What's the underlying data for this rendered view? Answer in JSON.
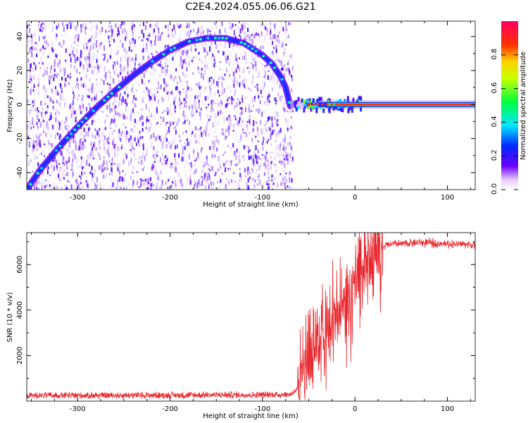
{
  "title": "C2E4.2024.055.06.06.G21",
  "colors": {
    "snr_line": "#e8262c",
    "frame": "#000000",
    "background": "#ffffff"
  },
  "chart_data": [
    {
      "type": "heatmap",
      "xlabel": "Height of straight line (km)",
      "ylabel": "Frequency (Hz)",
      "xlim": [
        -355,
        130
      ],
      "ylim": [
        -50,
        49
      ],
      "x_ticks": [
        -300,
        -200,
        -100,
        0,
        100
      ],
      "y_ticks": [
        -40,
        -20,
        0,
        20,
        40
      ],
      "colorbar": {
        "label": "Normalized spectral amplitude",
        "range": [
          0.0,
          1.0
        ],
        "ticks": [
          0.0,
          0.2,
          0.4,
          0.6,
          0.8
        ],
        "colormap": "rainbow"
      },
      "ridge": {
        "x": [
          -355,
          -340,
          -320,
          -300,
          -280,
          -260,
          -240,
          -220,
          -200,
          -180,
          -160,
          -140,
          -120,
          -100,
          -90,
          -80,
          -75,
          -70
        ],
        "y": [
          -50,
          -38,
          -25,
          -13,
          -2,
          8,
          17,
          25,
          32,
          37,
          39,
          39,
          36,
          29,
          24,
          16,
          10,
          -1
        ]
      },
      "noise_region_x": [
        -355,
        -68
      ],
      "carrier": {
        "x_start": -70,
        "x_end": 130,
        "frequency": 0
      }
    },
    {
      "type": "line",
      "xlabel": "Height of straight line (km)",
      "ylabel": "SNR (10 * v/v)",
      "xlim": [
        -355,
        130
      ],
      "ylim": [
        0,
        7400
      ],
      "x_ticks": [
        -300,
        -200,
        -100,
        0,
        100
      ],
      "y_ticks": [
        2000,
        4000,
        6000
      ],
      "series": [
        {
          "x": [
            -355,
            -300,
            -200,
            -100,
            -70,
            -60,
            -55,
            -50,
            -45,
            -40,
            -35,
            -30,
            -25,
            -20,
            -15,
            -10,
            -5,
            0,
            5,
            10,
            15,
            20,
            25,
            30,
            35,
            40,
            50,
            60,
            80,
            100,
            120,
            130
          ],
          "y": [
            250,
            250,
            260,
            280,
            290,
            600,
            1400,
            1800,
            2200,
            2600,
            2900,
            3200,
            3400,
            3600,
            3800,
            4200,
            4600,
            5000,
            5400,
            5800,
            6100,
            6400,
            6600,
            6750,
            6850,
            6900,
            6900,
            6950,
            6950,
            6900,
            6900,
            6850
          ]
        }
      ]
    }
  ]
}
